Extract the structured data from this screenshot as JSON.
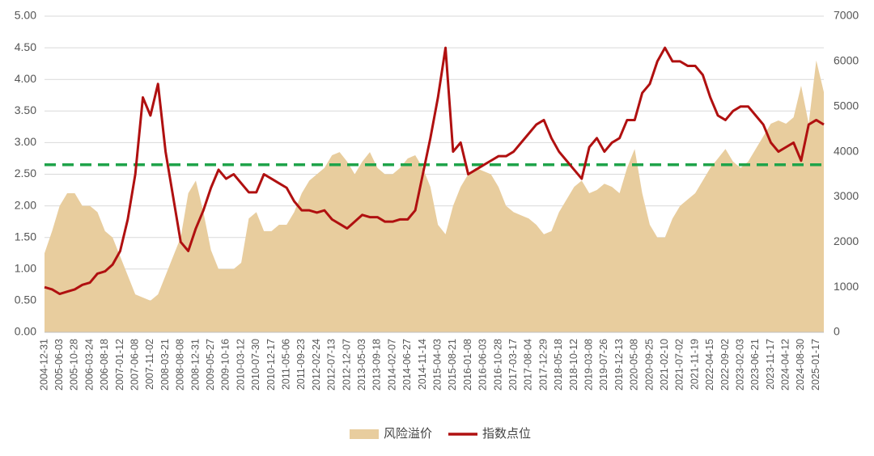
{
  "chart_data": {
    "type": "area-line",
    "categories": [
      "2004-12-31",
      null,
      "2005-06-03",
      null,
      "2005-10-28",
      null,
      "2006-03-24",
      null,
      "2006-08-18",
      null,
      "2007-01-12",
      null,
      "2007-06-08",
      null,
      "2007-11-02",
      null,
      "2008-03-21",
      null,
      "2008-08-08",
      null,
      "2008-12-31",
      null,
      "2009-05-27",
      null,
      "2009-10-16",
      null,
      "2010-03-12",
      null,
      "2010-07-30",
      null,
      "2010-12-17",
      null,
      "2011-05-06",
      null,
      "2011-09-23",
      null,
      "2012-02-24",
      null,
      "2012-07-13",
      null,
      "2012-12-07",
      null,
      "2013-05-03",
      null,
      "2013-09-18",
      null,
      "2014-02-07",
      null,
      "2014-06-27",
      null,
      "2014-11-14",
      null,
      "2015-04-03",
      null,
      "2015-08-21",
      null,
      "2016-01-08",
      null,
      "2016-06-03",
      null,
      "2016-10-28",
      null,
      "2017-03-17",
      null,
      "2017-08-04",
      null,
      "2017-12-29",
      null,
      "2018-05-18",
      null,
      "2018-10-12",
      null,
      "2019-03-08",
      null,
      "2019-07-26",
      null,
      "2019-12-13",
      null,
      "2020-05-08",
      null,
      "2020-09-25",
      null,
      "2021-02-10",
      null,
      "2021-07-02",
      null,
      "2021-11-19",
      null,
      "2022-04-15",
      null,
      "2022-09-02",
      null,
      "2023-02-03",
      null,
      "2023-06-21",
      null,
      "2023-11-17",
      null,
      "2024-04-12",
      null,
      "2024-08-30",
      null,
      "2025-01-17",
      null
    ],
    "series": [
      {
        "name": "风险溢价",
        "kind": "area",
        "color": "#e8cd9e",
        "values": [
          1.25,
          1.6,
          2.0,
          2.2,
          2.2,
          2.0,
          2.0,
          1.9,
          1.6,
          1.5,
          1.2,
          0.9,
          0.6,
          0.55,
          0.5,
          0.6,
          0.9,
          1.2,
          1.5,
          2.2,
          2.4,
          1.9,
          1.3,
          1.0,
          1.0,
          1.0,
          1.1,
          1.8,
          1.9,
          1.6,
          1.6,
          1.7,
          1.7,
          1.9,
          2.2,
          2.4,
          2.5,
          2.6,
          2.8,
          2.85,
          2.7,
          2.5,
          2.7,
          2.85,
          2.6,
          2.5,
          2.5,
          2.6,
          2.75,
          2.8,
          2.6,
          2.3,
          1.7,
          1.55,
          2.0,
          2.3,
          2.5,
          2.6,
          2.55,
          2.5,
          2.3,
          2.0,
          1.9,
          1.85,
          1.8,
          1.7,
          1.55,
          1.6,
          1.9,
          2.1,
          2.3,
          2.4,
          2.2,
          2.25,
          2.35,
          2.3,
          2.2,
          2.6,
          2.9,
          2.2,
          1.7,
          1.5,
          1.5,
          1.8,
          2.0,
          2.1,
          2.2,
          2.4,
          2.6,
          2.75,
          2.9,
          2.7,
          2.6,
          2.7,
          2.9,
          3.1,
          3.3,
          3.35,
          3.3,
          3.4,
          3.9,
          3.3,
          4.3,
          3.8
        ]
      },
      {
        "name": "指数点位",
        "kind": "line",
        "axis": "y2",
        "color": "#b01010",
        "values": [
          1000,
          950,
          850,
          900,
          950,
          1050,
          1100,
          1300,
          1350,
          1500,
          1800,
          2500,
          3500,
          5200,
          4800,
          5500,
          4000,
          3000,
          2000,
          1800,
          2300,
          2700,
          3200,
          3600,
          3400,
          3500,
          3300,
          3100,
          3100,
          3500,
          3400,
          3300,
          3200,
          2900,
          2700,
          2700,
          2650,
          2700,
          2500,
          2400,
          2300,
          2450,
          2600,
          2550,
          2550,
          2450,
          2450,
          2500,
          2500,
          2700,
          3500,
          4300,
          5200,
          6300,
          4000,
          4200,
          3500,
          3600,
          3700,
          3800,
          3900,
          3900,
          4000,
          4200,
          4400,
          4600,
          4700,
          4300,
          4000,
          3800,
          3600,
          3400,
          4100,
          4300,
          4000,
          4200,
          4300,
          4700,
          4700,
          5300,
          5500,
          6000,
          6300,
          6000,
          6000,
          5900,
          5900,
          5700,
          5200,
          4800,
          4700,
          4900,
          5000,
          5000,
          4800,
          4600,
          4200,
          4000,
          4100,
          4200,
          3800,
          4600,
          4700,
          4600
        ]
      }
    ],
    "reference_line": {
      "value": 2.65,
      "color": "#1fa34a",
      "dashed": true
    },
    "ylim": [
      0,
      5
    ],
    "yticks": [
      {
        "value": 0,
        "label": "0.00"
      },
      {
        "value": 0.5,
        "label": "0.50"
      },
      {
        "value": 1,
        "label": "1.00"
      },
      {
        "value": 1.5,
        "label": "1.50"
      },
      {
        "value": 2,
        "label": "2.00"
      },
      {
        "value": 2.5,
        "label": "2.50"
      },
      {
        "value": 3,
        "label": "3.00"
      },
      {
        "value": 3.5,
        "label": "3.50"
      },
      {
        "value": 4,
        "label": "4.00"
      },
      {
        "value": 4.5,
        "label": "4.50"
      },
      {
        "value": 5,
        "label": "5.00"
      }
    ],
    "y2lim": [
      0,
      7000
    ],
    "y2ticks": [
      0,
      1000,
      2000,
      3000,
      4000,
      5000,
      6000,
      7000
    ],
    "grid": true,
    "legend": "bottom"
  }
}
